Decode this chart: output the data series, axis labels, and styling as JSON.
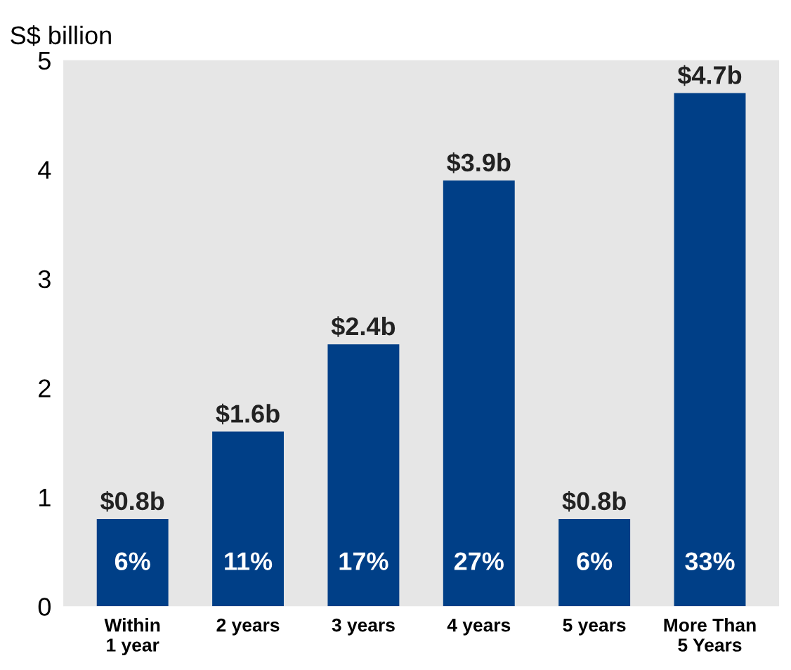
{
  "chart_data": {
    "type": "bar",
    "ylabel": "S$ billion",
    "categories": [
      "Within\n1 year",
      "2 years",
      "3 years",
      "4 years",
      "5 years",
      "More Than\n5 Years"
    ],
    "values": [
      0.8,
      1.6,
      2.4,
      3.9,
      0.8,
      4.7
    ],
    "value_labels": [
      "$0.8b",
      "$1.6b",
      "$2.4b",
      "$3.9b",
      "$0.8b",
      "$4.7b"
    ],
    "color": "#003f87",
    "ylim": [
      0,
      5
    ],
    "yticks": [
      0,
      1,
      2,
      3,
      4,
      5
    ],
    "grid": false,
    "legend": false,
    "annotations": [
      "6%",
      "11%",
      "17%",
      "27%",
      "6%",
      "33%"
    ]
  }
}
